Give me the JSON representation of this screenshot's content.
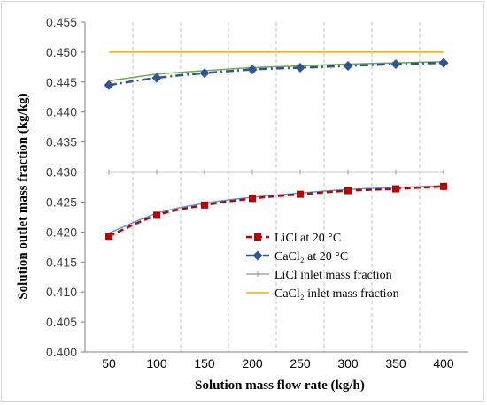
{
  "chart_data": {
    "type": "line",
    "title": "",
    "xlabel": "Solution mass flow rate (kg/h)",
    "ylabel": "Solution outlet mass fraction (kg/kg)",
    "x": [
      50,
      100,
      150,
      200,
      250,
      300,
      350,
      400
    ],
    "x_tick_labels": [
      "50",
      "100",
      "150",
      "200",
      "250",
      "300",
      "350",
      "400"
    ],
    "ylim": [
      0.4,
      0.455
    ],
    "y_tick_labels": [
      "0.400",
      "0.405",
      "0.410",
      "0.415",
      "0.420",
      "0.425",
      "0.430",
      "0.435",
      "0.440",
      "0.445",
      "0.450",
      "0.455"
    ],
    "grid": "vertical dashed gridlines",
    "legend_position": "lower-right",
    "series": [
      {
        "name": "LiCl at 20 °C",
        "values": [
          0.4193,
          0.4228,
          0.4245,
          0.4256,
          0.4263,
          0.4269,
          0.4272,
          0.4276
        ],
        "color": "#c00000",
        "marker": "square",
        "line_style": "dash"
      },
      {
        "name": "CaCl₂ at 20 °C",
        "values": [
          0.4445,
          0.4457,
          0.4465,
          0.4471,
          0.4474,
          0.4477,
          0.448,
          0.4482
        ],
        "color": "#2e5597",
        "marker": "diamond",
        "line_style": "dash-dot"
      },
      {
        "name": "LiCl inlet mass fraction",
        "values": [
          0.43,
          0.43,
          0.43,
          0.43,
          0.43,
          0.43,
          0.43,
          0.43
        ],
        "color": "#a6a6a6",
        "marker": "plus",
        "line_style": "solid"
      },
      {
        "name": "CaCl₂ inlet mass fraction",
        "values": [
          0.45,
          0.45,
          0.45,
          0.45,
          0.45,
          0.45,
          0.45,
          0.45
        ],
        "color": "#f0ab00",
        "marker": "none",
        "line_style": "solid"
      }
    ],
    "model_curves": [
      {
        "values": [
          0.4198,
          0.4231,
          0.4248,
          0.4258,
          0.4265,
          0.4271,
          0.4274,
          0.4277
        ],
        "color": "#5b9bd5"
      },
      {
        "values": [
          0.4452,
          0.4463,
          0.4469,
          0.4474,
          0.4477,
          0.448,
          0.4482,
          0.4484
        ],
        "color": "#70ad47"
      }
    ]
  }
}
